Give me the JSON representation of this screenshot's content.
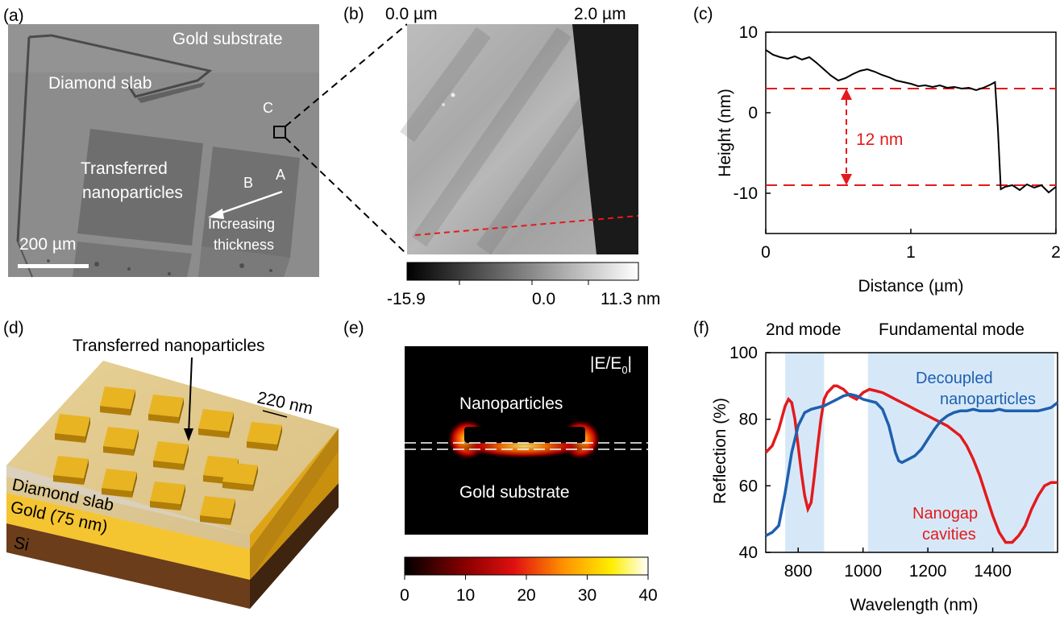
{
  "panels": {
    "a": {
      "label": "(a)",
      "gold_substrate": "Gold substrate",
      "diamond_slab": "Diamond slab",
      "transferred_line1": "Transferred",
      "transferred_line2": "nanoparticles",
      "point_a": "A",
      "point_b": "B",
      "point_c": "C",
      "increasing_line1": "Increasing",
      "increasing_line2": "thickness",
      "scalebar": "200 µm"
    },
    "b": {
      "label": "(b)",
      "x_start": "0.0 µm",
      "x_end": "2.0 µm",
      "colorbar_min": "-15.9",
      "colorbar_mid": "0.0",
      "colorbar_max": "11.3 nm"
    },
    "c": {
      "label": "(c)",
      "step_label": "12 nm"
    },
    "d": {
      "label": "(d)",
      "transferred": "Transferred nanoparticles",
      "size": "220 nm",
      "diamond": "Diamond slab",
      "gold": "Gold (75 nm)",
      "si": "Si"
    },
    "e": {
      "label": "(e)",
      "field": "|E/E",
      "field_sub": "0",
      "field_end": "|",
      "nanoparticles": "Nanoparticles",
      "gold_substrate": "Gold substrate",
      "ticks": [
        "0",
        "10",
        "20",
        "30",
        "40"
      ]
    },
    "f": {
      "label": "(f)",
      "second_mode": "2nd mode",
      "fundamental_mode": "Fundamental mode",
      "decoupled_line1": "Decoupled",
      "decoupled_line2": "nanoparticles",
      "nanogap_line1": "Nanogap",
      "nanogap_line2": "cavities"
    }
  },
  "colors": {
    "red": "#e31a1c",
    "blue": "#1f5fae",
    "band": "#d6e8f8",
    "gold": "#e8b422"
  },
  "chart_data": [
    {
      "type": "line",
      "id": "height-profile",
      "xlabel": "Distance (µm)",
      "ylabel": "Height (nm)",
      "xlim": [
        0,
        2
      ],
      "ylim": [
        -15,
        10
      ],
      "xticks": [
        "0",
        "1",
        "2"
      ],
      "yticks": [
        "10",
        "0",
        "-10"
      ],
      "reference_lines": [
        3,
        -9
      ],
      "x": [
        0,
        0.05,
        0.1,
        0.15,
        0.2,
        0.25,
        0.3,
        0.35,
        0.4,
        0.45,
        0.5,
        0.55,
        0.6,
        0.65,
        0.7,
        0.75,
        0.8,
        0.85,
        0.9,
        0.95,
        1.0,
        1.05,
        1.1,
        1.15,
        1.2,
        1.25,
        1.3,
        1.35,
        1.4,
        1.45,
        1.5,
        1.55,
        1.58,
        1.6,
        1.62,
        1.65,
        1.7,
        1.75,
        1.8,
        1.85,
        1.9,
        1.95,
        2.0
      ],
      "y": [
        7.8,
        7.2,
        6.9,
        6.7,
        7.0,
        6.6,
        6.9,
        6.2,
        5.4,
        4.6,
        4.0,
        4.3,
        4.8,
        5.2,
        5.4,
        5.1,
        4.7,
        4.4,
        4.0,
        3.8,
        3.6,
        3.3,
        3.4,
        3.2,
        3.4,
        3.1,
        3.2,
        3.0,
        3.1,
        2.8,
        3.1,
        3.5,
        3.8,
        -2.0,
        -9.5,
        -9.2,
        -9.0,
        -9.6,
        -8.9,
        -9.3,
        -9.0,
        -9.9,
        -9.2
      ]
    },
    {
      "type": "line",
      "id": "reflection",
      "xlabel": "Wavelength (nm)",
      "ylabel": "Reflection (%)",
      "xlim": [
        700,
        1600
      ],
      "ylim": [
        40,
        100
      ],
      "xticks": [
        "800",
        "1000",
        "1200",
        "1400"
      ],
      "yticks": [
        "40",
        "60",
        "80",
        "100"
      ],
      "bands": [
        [
          760,
          880
        ],
        [
          1015,
          1590
        ]
      ],
      "series": [
        {
          "name": "Nanogap cavities",
          "color": "#e31a1c",
          "x": [
            700,
            720,
            740,
            760,
            770,
            780,
            790,
            800,
            810,
            820,
            830,
            840,
            850,
            860,
            870,
            880,
            890,
            900,
            910,
            920,
            930,
            940,
            960,
            980,
            1000,
            1020,
            1040,
            1060,
            1080,
            1100,
            1120,
            1140,
            1160,
            1180,
            1200,
            1220,
            1240,
            1260,
            1280,
            1300,
            1320,
            1340,
            1360,
            1380,
            1400,
            1420,
            1440,
            1460,
            1480,
            1500,
            1520,
            1540,
            1560,
            1580,
            1600
          ],
          "y": [
            70,
            72,
            77,
            84,
            86,
            85,
            80,
            72,
            64,
            57,
            53,
            55,
            63,
            72,
            80,
            86,
            88,
            89,
            90,
            90,
            89.5,
            89,
            87,
            86,
            88,
            89,
            88.5,
            88,
            87,
            86,
            85,
            84,
            83,
            82,
            81,
            80,
            79,
            78,
            76.5,
            75,
            72,
            68,
            63,
            57,
            51,
            46,
            43,
            43,
            45,
            48,
            53,
            57,
            60,
            61,
            61
          ]
        },
        {
          "name": "Decoupled nanoparticles",
          "color": "#1f5fae",
          "x": [
            700,
            720,
            740,
            760,
            780,
            800,
            820,
            840,
            860,
            880,
            900,
            920,
            940,
            960,
            980,
            1000,
            1020,
            1040,
            1060,
            1080,
            1100,
            1110,
            1120,
            1140,
            1160,
            1180,
            1200,
            1220,
            1240,
            1260,
            1280,
            1300,
            1320,
            1340,
            1360,
            1380,
            1400,
            1420,
            1440,
            1460,
            1480,
            1500,
            1520,
            1540,
            1560,
            1580,
            1600
          ],
          "y": [
            45,
            46,
            48,
            58,
            70,
            78,
            82,
            83,
            83.5,
            84,
            85,
            86,
            87,
            87.5,
            87,
            86,
            85.5,
            85,
            83,
            78,
            70,
            67.5,
            67,
            68,
            69,
            71,
            74,
            77,
            79.5,
            81,
            82,
            82.5,
            82.5,
            83,
            82.5,
            82.5,
            82.5,
            83,
            82.5,
            82.5,
            82.5,
            82.5,
            82.5,
            82.5,
            83,
            83.5,
            85
          ]
        }
      ]
    }
  ]
}
